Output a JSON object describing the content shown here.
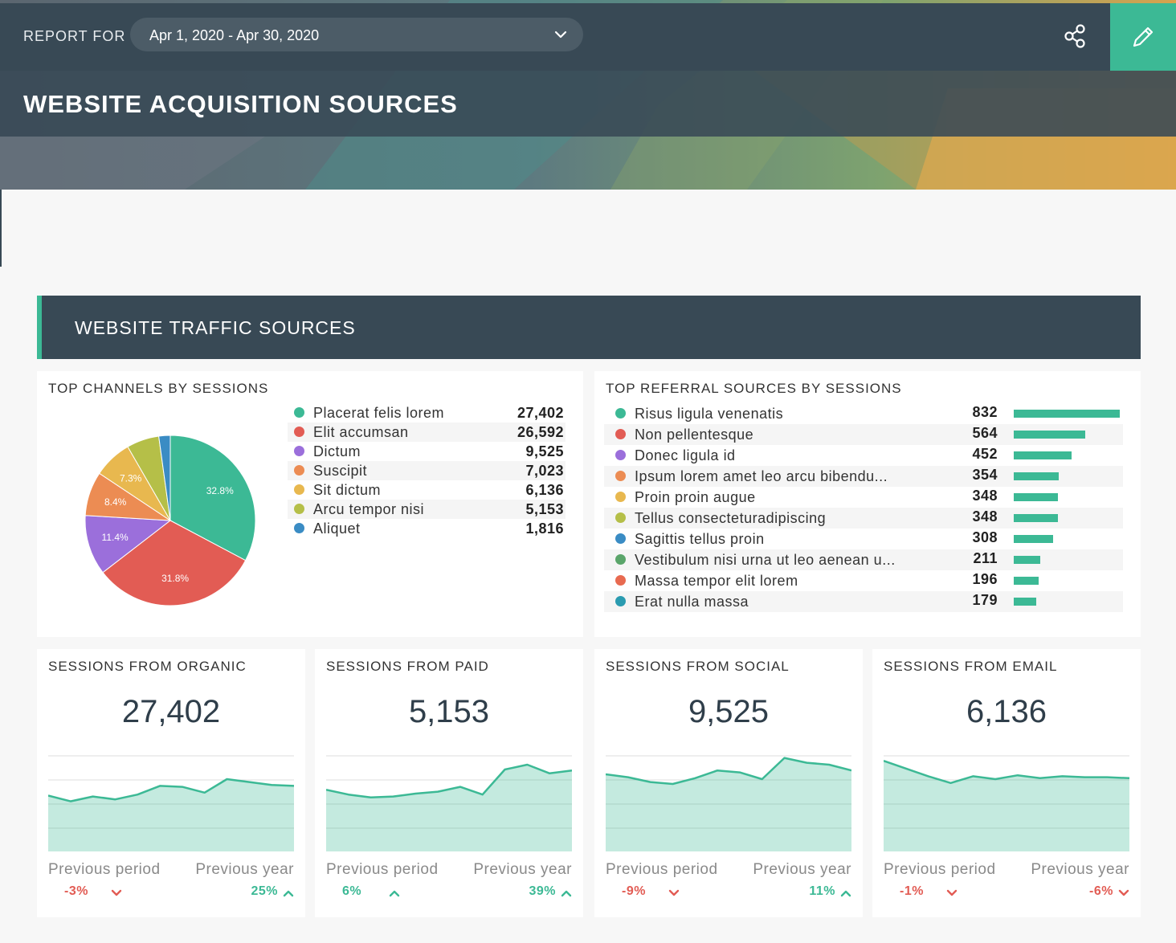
{
  "header": {
    "report_for": "REPORT FOR",
    "date_range": "Apr 1, 2020 - Apr 30, 2020",
    "title": "WEBSITE ACQUISITION SOURCES",
    "colors": {
      "bar": "#384955",
      "accent": "#3cb995"
    }
  },
  "section": {
    "title": "WEBSITE TRAFFIC SOURCES"
  },
  "channels": {
    "title": "TOP CHANNELS BY SESSIONS",
    "items": [
      {
        "label": "Placerat felis lorem",
        "value": "27,402",
        "color": "#3cb995"
      },
      {
        "label": "Elit accumsan",
        "value": "26,592",
        "color": "#e25c54"
      },
      {
        "label": "Dictum",
        "value": "9,525",
        "color": "#9b6fdb"
      },
      {
        "label": "Suscipit",
        "value": "7,023",
        "color": "#ec8c53"
      },
      {
        "label": "Sit dictum",
        "value": "6,136",
        "color": "#e8b84f"
      },
      {
        "label": "Arcu tempor nisi",
        "value": "5,153",
        "color": "#b5bf48"
      },
      {
        "label": "Aliquet",
        "value": "1,816",
        "color": "#3a8cc4"
      }
    ]
  },
  "chart_data": {
    "type": "pie",
    "categories": [
      "Placerat felis lorem",
      "Elit accumsan",
      "Dictum",
      "Suscipit",
      "Sit dictum",
      "Arcu tempor nisi",
      "Aliquet"
    ],
    "values": [
      27402,
      26592,
      9525,
      7023,
      6136,
      5153,
      1816
    ],
    "slice_labels": [
      "32.8%",
      "31.8%",
      "11.4%",
      "8.4%",
      "7.3%",
      "",
      ""
    ],
    "colors": [
      "#3cb995",
      "#e25c54",
      "#9b6fdb",
      "#ec8c53",
      "#e8b84f",
      "#b5bf48",
      "#3a8cc4"
    ]
  },
  "referrals": {
    "title": "TOP REFERRAL SOURCES BY SESSIONS",
    "max": 832,
    "items": [
      {
        "label": "Risus ligula venenatis",
        "value": 832,
        "display": "832",
        "color": "#3cb995"
      },
      {
        "label": "Non pellentesque",
        "value": 564,
        "display": "564",
        "color": "#e25c54"
      },
      {
        "label": "Donec ligula id",
        "value": 452,
        "display": "452",
        "color": "#9b6fdb"
      },
      {
        "label": "Ipsum lorem amet leo arcu bibendu...",
        "value": 354,
        "display": "354",
        "color": "#ec8c53"
      },
      {
        "label": "Proin proin augue",
        "value": 348,
        "display": "348",
        "color": "#e8b84f"
      },
      {
        "label": "Tellus consecteturadipiscing",
        "value": 348,
        "display": "348",
        "color": "#b5bf48"
      },
      {
        "label": "Sagittis tellus proin",
        "value": 308,
        "display": "308",
        "color": "#3a8cc4"
      },
      {
        "label": "Vestibulum nisi urna ut leo aenean u...",
        "value": 211,
        "display": "211",
        "color": "#5aa56a"
      },
      {
        "label": "Massa tempor elit lorem",
        "value": 196,
        "display": "196",
        "color": "#e86a50"
      },
      {
        "label": "Erat nulla massa",
        "value": 179,
        "display": "179",
        "color": "#2a9bb0"
      }
    ]
  },
  "kpis": [
    {
      "title": "SESSIONS FROM ORGANIC",
      "value": "27,402",
      "prev_period_label": "Previous period",
      "prev_year_label": "Previous year",
      "prev_period": "-3%",
      "prev_period_dir": "down",
      "prev_year": "25%",
      "prev_year_dir": "up",
      "trend": [
        0.58,
        0.52,
        0.57,
        0.54,
        0.59,
        0.68,
        0.67,
        0.61,
        0.75,
        0.72,
        0.69,
        0.68
      ]
    },
    {
      "title": "SESSIONS FROM PAID",
      "value": "5,153",
      "prev_period_label": "Previous period",
      "prev_year_label": "Previous year",
      "prev_period": "6%",
      "prev_period_dir": "up",
      "prev_year": "39%",
      "prev_year_dir": "up",
      "trend": [
        0.64,
        0.59,
        0.56,
        0.57,
        0.6,
        0.62,
        0.67,
        0.59,
        0.85,
        0.9,
        0.81,
        0.84
      ]
    },
    {
      "title": "SESSIONS FROM SOCIAL",
      "value": "9,525",
      "prev_period_label": "Previous period",
      "prev_year_label": "Previous year",
      "prev_period": "-9%",
      "prev_period_dir": "down",
      "prev_year": "11%",
      "prev_year_dir": "up",
      "trend": [
        0.8,
        0.77,
        0.72,
        0.7,
        0.76,
        0.84,
        0.82,
        0.75,
        0.97,
        0.92,
        0.9,
        0.84
      ]
    },
    {
      "title": "SESSIONS FROM EMAIL",
      "value": "6,136",
      "prev_period_label": "Previous period",
      "prev_year_label": "Previous year",
      "prev_period": "-1%",
      "prev_period_dir": "down",
      "prev_year": "-6%",
      "prev_year_dir": "down",
      "trend": [
        0.94,
        0.86,
        0.78,
        0.71,
        0.78,
        0.75,
        0.79,
        0.76,
        0.78,
        0.77,
        0.77,
        0.76
      ]
    }
  ]
}
